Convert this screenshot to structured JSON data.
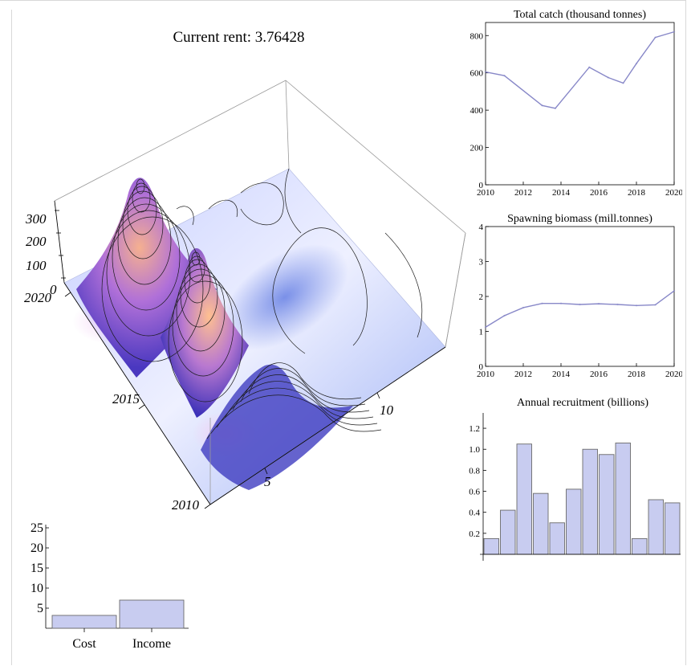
{
  "header": {
    "rent_label": "Current rent:",
    "rent_value": "3.76428"
  },
  "colors": {
    "series": "#8888c8",
    "bar_fill": "#c8ccf0",
    "bar_stroke": "#6a6a6a",
    "frame": "#d8d8d8"
  },
  "chart_data": [
    {
      "id": "surface",
      "type": "surface3d",
      "z_ticks": [
        "0",
        "100",
        "200",
        "300"
      ],
      "year_ticks": [
        "2010",
        "2015",
        "2020"
      ],
      "age_ticks": [
        "5",
        "10"
      ]
    },
    {
      "id": "catch",
      "type": "line",
      "title": "Total catch (thousand tonnes)",
      "x": [
        2010,
        2011,
        2013,
        2013.7,
        2015.5,
        2016.5,
        2017.3,
        2018,
        2019,
        2020
      ],
      "y": [
        605,
        585,
        425,
        410,
        630,
        575,
        545,
        650,
        790,
        820
      ],
      "xlim": [
        2010,
        2020
      ],
      "ylim": [
        0,
        870
      ],
      "xticks": [
        2010,
        2012,
        2014,
        2016,
        2018,
        2020
      ],
      "yticks": [
        0,
        200,
        400,
        600,
        800
      ]
    },
    {
      "id": "biomass",
      "type": "line",
      "title": "Spawning biomass (mill.tonnes)",
      "x": [
        2010,
        2011,
        2012,
        2013,
        2014,
        2015,
        2016,
        2017,
        2018,
        2019,
        2020
      ],
      "y": [
        1.12,
        1.45,
        1.68,
        1.8,
        1.8,
        1.77,
        1.79,
        1.77,
        1.74,
        1.76,
        2.16
      ],
      "xlim": [
        2010,
        2020
      ],
      "ylim": [
        0,
        4
      ],
      "xticks": [
        2010,
        2012,
        2014,
        2016,
        2018,
        2020
      ],
      "yticks": [
        0,
        1,
        2,
        3,
        4
      ]
    },
    {
      "id": "recruitment",
      "type": "bar",
      "title": "Annual recruitment (billions)",
      "values": [
        0.15,
        0.42,
        1.05,
        0.58,
        0.3,
        0.62,
        1.0,
        0.95,
        1.06,
        0.15,
        0.52,
        0.49
      ],
      "ylim": [
        0,
        1.3
      ],
      "yticks": [
        "0.2",
        "0.4",
        "0.6",
        "0.8",
        "1.0",
        "1.2"
      ]
    },
    {
      "id": "cost_income",
      "type": "bar",
      "categories": [
        "Cost",
        "Income"
      ],
      "values": [
        3.2,
        7.0
      ],
      "ylim": [
        0,
        25
      ],
      "yticks": [
        "5",
        "10",
        "15",
        "20",
        "25"
      ]
    }
  ]
}
